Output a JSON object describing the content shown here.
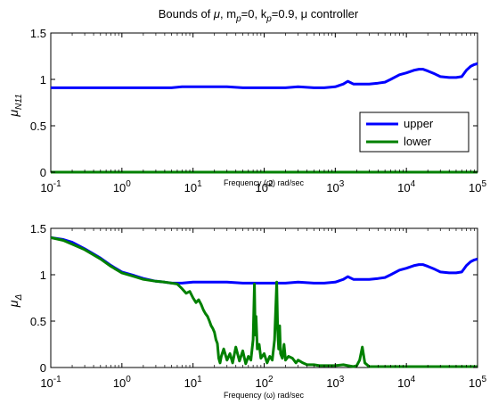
{
  "chart_data": [
    {
      "type": "line",
      "title_parts": [
        "Bounds of ",
        "μ",
        ", m",
        "p",
        "=0, k",
        "p",
        "=0.9, μ controller"
      ],
      "xlabel": "Frequency (ω) rad/sec",
      "ylabel_main": "μ",
      "ylabel_sub": "N11",
      "xscale": "log",
      "xlim": [
        0.1,
        100000
      ],
      "ylim": [
        0,
        1.5
      ],
      "xtick_exponents": [
        "-1",
        "0",
        "1",
        "2",
        "3",
        "4",
        "5"
      ],
      "yticks": [
        "0",
        "0.5",
        "1",
        "1.5"
      ],
      "grid": false,
      "legend_position": "center-right",
      "legend": [
        "upper",
        "lower"
      ],
      "series": [
        {
          "name": "upper",
          "color": "#0000ff",
          "x": [
            0.1,
            0.5,
            1,
            3,
            5,
            7,
            10,
            20,
            30,
            50,
            100,
            200,
            300,
            500,
            700,
            1000,
            1300,
            1500,
            1800,
            2000,
            2500,
            3000,
            4000,
            5000,
            6000,
            8000,
            10000,
            13000,
            15000,
            17000,
            20000,
            25000,
            30000,
            40000,
            50000,
            60000,
            70000,
            80000,
            90000,
            100000
          ],
          "y": [
            0.91,
            0.91,
            0.91,
            0.91,
            0.91,
            0.92,
            0.92,
            0.92,
            0.92,
            0.91,
            0.91,
            0.91,
            0.92,
            0.91,
            0.91,
            0.92,
            0.95,
            0.98,
            0.95,
            0.95,
            0.95,
            0.95,
            0.96,
            0.97,
            1.0,
            1.05,
            1.07,
            1.1,
            1.11,
            1.11,
            1.09,
            1.06,
            1.03,
            1.02,
            1.02,
            1.03,
            1.1,
            1.14,
            1.16,
            1.17
          ]
        },
        {
          "name": "lower",
          "color": "#008000",
          "x": [
            0.1,
            100000
          ],
          "y": [
            0.0,
            0.0
          ]
        }
      ]
    },
    {
      "type": "line",
      "xlabel": "Frequency (ω) rad/sec",
      "ylabel_main": "μ",
      "ylabel_sub": "Δ",
      "xscale": "log",
      "xlim": [
        0.1,
        100000
      ],
      "ylim": [
        0,
        1.5
      ],
      "xtick_exponents": [
        "-1",
        "0",
        "1",
        "2",
        "3",
        "4",
        "5"
      ],
      "yticks": [
        "0",
        "0.5",
        "1",
        "1.5"
      ],
      "grid": false,
      "series": [
        {
          "name": "upper",
          "color": "#0000ff",
          "x": [
            0.1,
            0.15,
            0.2,
            0.3,
            0.5,
            0.7,
            1,
            1.5,
            2,
            3,
            4,
            5,
            7,
            10,
            20,
            30,
            50,
            100,
            200,
            300,
            500,
            700,
            1000,
            1300,
            1500,
            1800,
            2000,
            2500,
            3000,
            4000,
            5000,
            6000,
            8000,
            10000,
            13000,
            15000,
            17000,
            20000,
            25000,
            30000,
            40000,
            50000,
            60000,
            70000,
            80000,
            90000,
            100000
          ],
          "y": [
            1.4,
            1.38,
            1.35,
            1.28,
            1.18,
            1.1,
            1.03,
            0.99,
            0.96,
            0.93,
            0.92,
            0.91,
            0.91,
            0.92,
            0.92,
            0.92,
            0.91,
            0.91,
            0.91,
            0.92,
            0.91,
            0.91,
            0.92,
            0.95,
            0.98,
            0.95,
            0.95,
            0.95,
            0.95,
            0.96,
            0.97,
            1.0,
            1.05,
            1.07,
            1.1,
            1.11,
            1.11,
            1.09,
            1.06,
            1.03,
            1.02,
            1.02,
            1.03,
            1.1,
            1.14,
            1.16,
            1.17
          ]
        },
        {
          "name": "lower",
          "color": "#008000",
          "x": [
            0.1,
            0.15,
            0.2,
            0.3,
            0.5,
            0.7,
            1,
            1.5,
            2,
            3,
            4,
            5,
            6,
            7,
            8,
            9,
            10,
            11,
            12,
            13,
            14,
            15,
            16,
            17,
            18,
            19,
            20,
            21,
            22,
            23,
            24,
            25,
            27,
            30,
            33,
            36,
            40,
            45,
            50,
            55,
            60,
            65,
            70,
            73,
            75,
            77,
            80,
            85,
            90,
            100,
            110,
            120,
            130,
            140,
            150,
            155,
            160,
            165,
            170,
            180,
            190,
            200,
            220,
            250,
            280,
            300,
            350,
            400,
            500,
            600,
            700,
            800,
            1000,
            1300,
            1500,
            1800,
            2000,
            2200,
            2400,
            2600,
            3000,
            4000,
            5000,
            10000,
            20000,
            50000,
            100000
          ],
          "y": [
            1.4,
            1.37,
            1.33,
            1.27,
            1.17,
            1.09,
            1.02,
            0.98,
            0.95,
            0.93,
            0.92,
            0.91,
            0.9,
            0.85,
            0.8,
            0.82,
            0.75,
            0.7,
            0.73,
            0.68,
            0.62,
            0.58,
            0.55,
            0.5,
            0.45,
            0.42,
            0.38,
            0.3,
            0.26,
            0.1,
            0.05,
            0.12,
            0.2,
            0.08,
            0.15,
            0.05,
            0.22,
            0.07,
            0.18,
            0.04,
            0.12,
            0.08,
            0.3,
            0.9,
            0.35,
            0.55,
            0.2,
            0.25,
            0.1,
            0.15,
            0.05,
            0.12,
            0.08,
            0.3,
            0.92,
            0.4,
            0.2,
            0.45,
            0.15,
            0.1,
            0.25,
            0.08,
            0.12,
            0.1,
            0.05,
            0.08,
            0.05,
            0.03,
            0.03,
            0.02,
            0.02,
            0.02,
            0.02,
            0.03,
            0.02,
            0.01,
            0.02,
            0.08,
            0.22,
            0.05,
            0.01,
            0.01,
            0.01,
            0.01,
            0.01,
            0.01,
            0.01
          ]
        }
      ]
    }
  ]
}
